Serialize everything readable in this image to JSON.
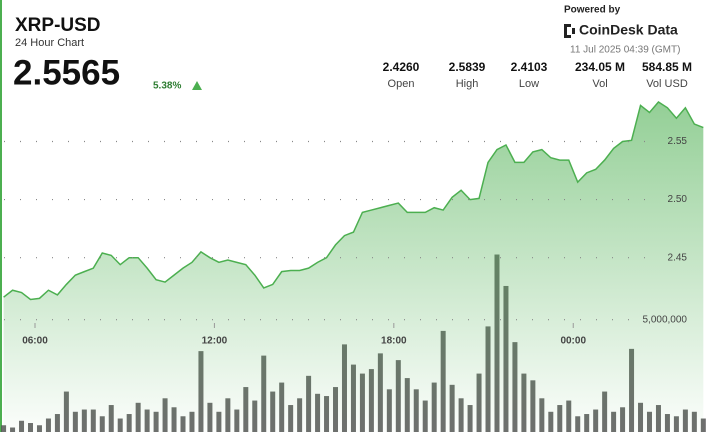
{
  "header": {
    "symbol": "XRP-USD",
    "subtitle": "24 Hour Chart",
    "price": "2.5565",
    "change": "5.38%",
    "stats": [
      {
        "value": "2.4260",
        "label": "Open"
      },
      {
        "value": "2.5839",
        "label": "High"
      },
      {
        "value": "2.4103",
        "label": "Low"
      },
      {
        "value": "234.05 M",
        "label": "Vol"
      },
      {
        "value": "584.85 M",
        "label": "Vol USD"
      }
    ],
    "powered_by": "Powered by",
    "brand": "CoinDesk Data",
    "timestamp": "11 Jul 2025 04:39 (GMT)"
  },
  "chart_data": {
    "type": "line",
    "x": [
      4.95,
      5.25,
      5.55,
      5.85,
      6.15,
      6.45,
      6.75,
      7.05,
      7.35,
      7.65,
      7.95,
      8.25,
      8.55,
      8.85,
      9.15,
      9.45,
      9.75,
      10.05,
      10.35,
      10.65,
      10.95,
      11.25,
      11.55,
      11.85,
      12.15,
      12.45,
      12.75,
      13.05,
      13.35,
      13.65,
      13.95,
      14.25,
      14.55,
      14.85,
      15.15,
      15.45,
      15.75,
      16.05,
      16.35,
      16.65,
      16.95,
      17.25,
      17.55,
      17.85,
      18.15,
      18.45,
      18.75,
      19.05,
      19.35,
      19.65,
      19.95,
      20.25,
      20.55,
      20.85,
      21.15,
      21.45,
      21.75,
      22.05,
      22.35,
      22.65,
      22.95,
      23.25,
      23.55,
      23.85,
      24.15,
      24.45,
      24.75,
      25.05,
      25.35,
      25.65,
      25.95,
      26.25,
      26.55,
      26.85,
      27.15,
      27.45,
      27.75,
      28.05,
      28.35
    ],
    "series": [
      {
        "color": "#4caf50",
        "values": [
          2.416,
          2.422,
          2.42,
          2.414,
          2.415,
          2.422,
          2.418,
          2.427,
          2.435,
          2.438,
          2.441,
          2.454,
          2.452,
          2.444,
          2.45,
          2.45,
          2.441,
          2.431,
          2.429,
          2.435,
          2.441,
          2.446,
          2.455,
          2.45,
          2.446,
          2.448,
          2.446,
          2.444,
          2.435,
          2.424,
          2.427,
          2.438,
          2.439,
          2.439,
          2.441,
          2.446,
          2.45,
          2.461,
          2.469,
          2.472,
          2.489,
          2.491,
          2.493,
          2.495,
          2.497,
          2.489,
          2.489,
          2.489,
          2.493,
          2.491,
          2.502,
          2.508,
          2.5,
          2.501,
          2.532,
          2.543,
          2.547,
          2.532,
          2.532,
          2.541,
          2.543,
          2.536,
          2.534,
          2.534,
          2.515,
          2.523,
          2.526,
          2.534,
          2.544,
          2.55,
          2.551,
          2.581,
          2.575,
          2.584,
          2.579,
          2.57,
          2.579,
          2.565,
          2.562
        ]
      },
      {
        "color": "#555555",
        "type": "bar",
        "axis": "y2",
        "values": [
          300000,
          200000,
          500000,
          400000,
          300000,
          600000,
          800000,
          1800000,
          900000,
          1000000,
          1000000,
          700000,
          1200000,
          600000,
          800000,
          1300000,
          1000000,
          900000,
          1500000,
          1100000,
          700000,
          900000,
          3600000,
          1300000,
          900000,
          1500000,
          1000000,
          2000000,
          1400000,
          3400000,
          1800000,
          2200000,
          1200000,
          1500000,
          2500000,
          1700000,
          1600000,
          2000000,
          3900000,
          3000000,
          2600000,
          2800000,
          3500000,
          1900000,
          3200000,
          2400000,
          1900000,
          1400000,
          2200000,
          4500000,
          2100000,
          1500000,
          1200000,
          2600000,
          4700000,
          7900000,
          6500000,
          4000000,
          2600000,
          2300000,
          1500000,
          900000,
          1200000,
          1400000,
          700000,
          800000,
          1000000,
          1800000,
          900000,
          1100000,
          3700000,
          1300000,
          900000,
          1200000,
          800000,
          700000,
          1000000,
          900000,
          600000
        ]
      }
    ],
    "xlim": [
      4.83,
      28.54
    ],
    "xticks": [
      {
        "value": 6,
        "label": "06:00"
      },
      {
        "value": 12,
        "label": "12:00"
      },
      {
        "value": 18,
        "label": "18:00"
      },
      {
        "value": 24,
        "label": "00:00"
      }
    ],
    "ylim": [
      2.3,
      2.59
    ],
    "yticks": [
      2.45,
      {
        "value": 2.5,
        "label": "2.50"
      },
      2.55
    ],
    "y2lim": [
      0,
      15000000
    ],
    "y2ticks": [
      {
        "value": 5000000,
        "label": "5,000,000"
      }
    ],
    "grid": true
  }
}
